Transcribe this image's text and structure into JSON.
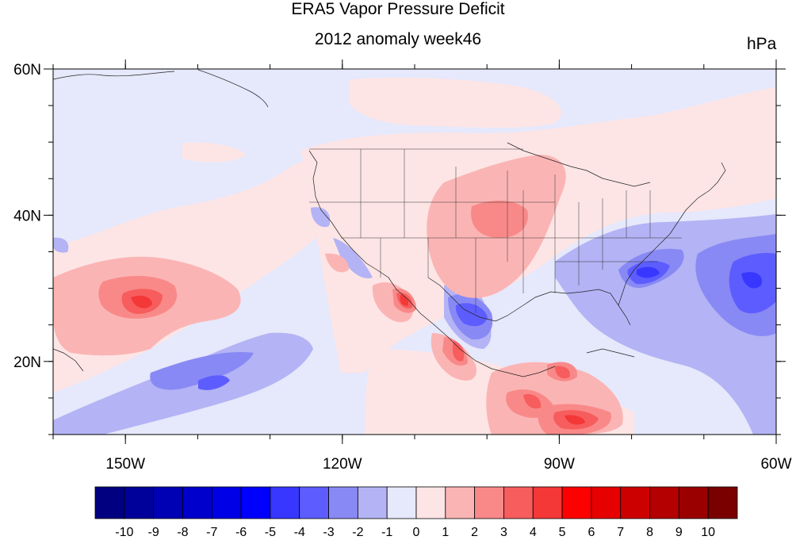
{
  "title": "ERA5 Vapor Pressure Deficit",
  "subtitle": "2012 anomaly week46",
  "units": "hPa",
  "map": {
    "lon_range": [
      -160,
      -60
    ],
    "lat_range": [
      10,
      60
    ],
    "lon_ticks": [
      {
        "value": -150,
        "label": "150W"
      },
      {
        "value": -120,
        "label": "120W"
      },
      {
        "value": -90,
        "label": "90W"
      },
      {
        "value": -60,
        "label": "60W"
      }
    ],
    "lat_ticks": [
      {
        "value": 60,
        "label": "60N"
      },
      {
        "value": 40,
        "label": "40N"
      },
      {
        "value": 20,
        "label": "20N"
      }
    ],
    "background_anomaly_color": "#e6e8fb"
  },
  "colorbar": {
    "labels": [
      "-10",
      "-9",
      "-8",
      "-7",
      "-6",
      "-5",
      "-4",
      "-3",
      "-2",
      "-1",
      "0",
      "1",
      "2",
      "3",
      "4",
      "5",
      "6",
      "7",
      "8",
      "9",
      "10"
    ],
    "colors": [
      "#000080",
      "#00009a",
      "#0000b4",
      "#0000cd",
      "#0000e6",
      "#0000ff",
      "#3737ff",
      "#5d5dff",
      "#8989f5",
      "#b3b3f5",
      "#e6e8fb",
      "#fde5e5",
      "#fbb4b4",
      "#f98989",
      "#f75d5d",
      "#f43737",
      "#ff0000",
      "#e60000",
      "#cd0000",
      "#b40000",
      "#9a0000",
      "#7a0000"
    ]
  },
  "anomaly_features": [
    {
      "name": "central-pacific-warm",
      "level": 3
    },
    {
      "name": "plains-warm",
      "level": 2
    },
    {
      "name": "mexico-warm",
      "level": 5
    },
    {
      "name": "southeast-coast-cool",
      "level": -5
    },
    {
      "name": "atlantic-cool",
      "level": -4
    },
    {
      "name": "tropical-pacific-cool",
      "level": -3
    }
  ]
}
